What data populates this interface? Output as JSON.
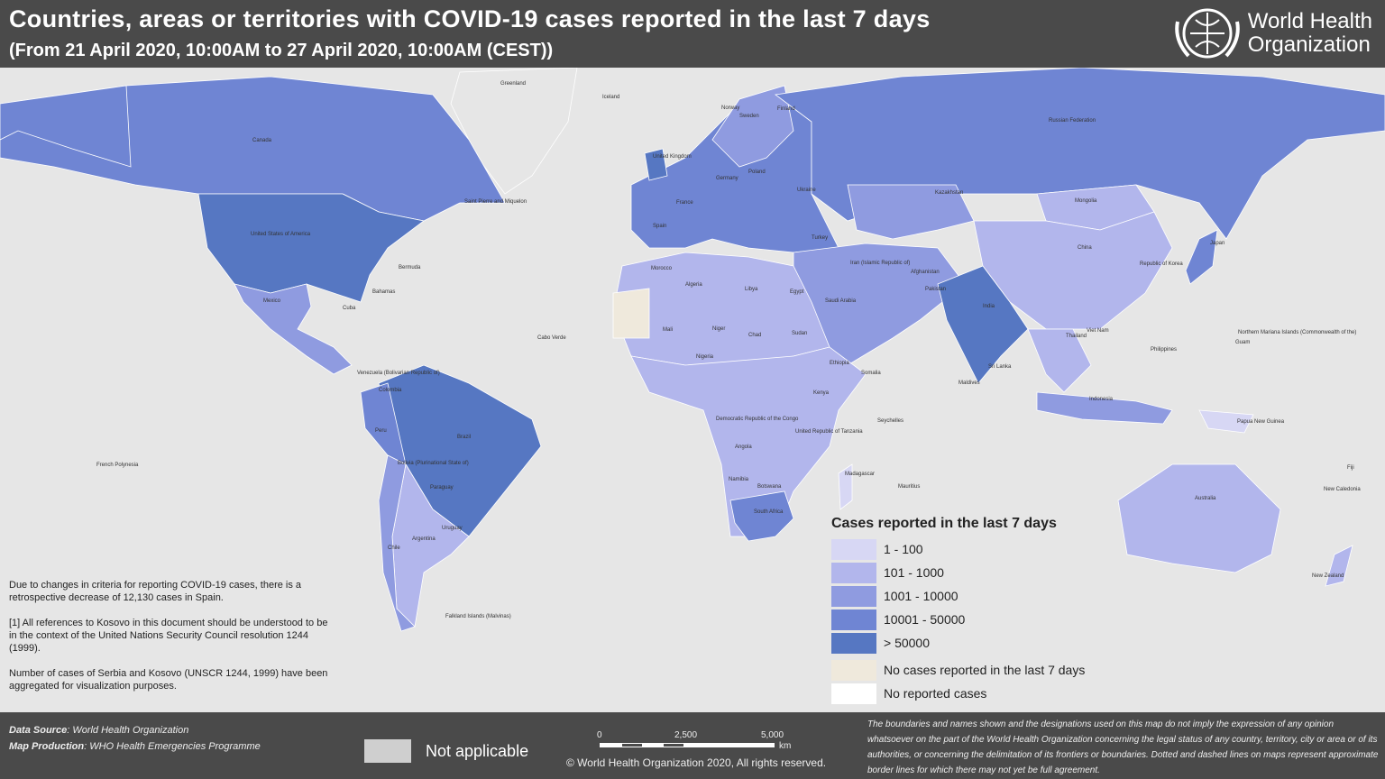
{
  "header": {
    "title": "Countries, areas or territories with COVID-19 cases reported in the last 7 days",
    "subtitle": "(From 21 April 2020, 10:00AM  to 27 April 2020, 10:00AM (CEST))",
    "logo_text_line1": "World Health",
    "logo_text_line2": "Organization",
    "logo_icon": "who-emblem-icon"
  },
  "map": {
    "background_color": "#e6e6e6",
    "labels": [
      "Greenland",
      "Iceland",
      "Canada",
      "United States of America",
      "Mexico",
      "Cuba",
      "Bahamas",
      "Bermuda",
      "Saint Pierre and Miquelon",
      "Colombia",
      "Venezuela (Bolivarian Republic of)",
      "Brazil",
      "Peru",
      "Bolivia (Plurinational State of)",
      "Paraguay",
      "Argentina",
      "Chile",
      "Uruguay",
      "Falkland Islands (Malvinas)",
      "French Polynesia",
      "Russian Federation",
      "Kazakhstan",
      "Mongolia",
      "China",
      "Japan",
      "Republic of Korea",
      "India",
      "Pakistan",
      "Iran (Islamic Republic of)",
      "Saudi Arabia",
      "Egypt",
      "Libya",
      "Algeria",
      "Morocco",
      "Mali",
      "Niger",
      "Chad",
      "Sudan",
      "Ethiopia",
      "Nigeria",
      "Democratic Republic of the Congo",
      "United Republic of Tanzania",
      "Angola",
      "Namibia",
      "Botswana",
      "South Africa",
      "Madagascar",
      "Australia",
      "New Zealand",
      "Papua New Guinea",
      "Indonesia",
      "Philippines",
      "Thailand",
      "Viet Nam",
      "Spain",
      "France",
      "Germany",
      "Poland",
      "Ukraine",
      "Norway",
      "Sweden",
      "Finland",
      "United Kingdom",
      "Turkey",
      "Afghanistan",
      "Somalia",
      "Kenya",
      "Cabo Verde",
      "Fiji",
      "New Caledonia",
      "Northern Mariana Islands (Commonwealth of the)",
      "Guam",
      "Sri Lanka",
      "Maldives",
      "Seychelles",
      "Mauritius"
    ]
  },
  "legend": {
    "title": "Cases reported in the last 7 days",
    "items": [
      {
        "label": "1 - 100",
        "color": "#d7d7f4"
      },
      {
        "label": "101 - 1000",
        "color": "#b2b6ec"
      },
      {
        "label": "1001 - 10000",
        "color": "#8f9be0"
      },
      {
        "label": "10001 - 50000",
        "color": "#6f85d3"
      },
      {
        "label": "> 50000",
        "color": "#5677c2"
      },
      {
        "label": "No cases reported in the last 7 days",
        "color": "#efe9dc"
      },
      {
        "label": "No reported cases",
        "color": "#ffffff"
      }
    ]
  },
  "notes": [
    "Due to changes in criteria for reporting COVID-19 cases, there is a retrospective decrease of 12,130 cases in Spain.",
    "[1] All references to Kosovo in this document should be understood to be in the context of the United Nations Security Council resolution 1244 (1999).",
    "Number of cases of Serbia and Kosovo (UNSCR 1244, 1999)  have been aggregated for visualization purposes."
  ],
  "footer": {
    "data_source_label": "Data Source",
    "data_source": "World Health Organization",
    "map_production_label": "Map Production",
    "map_production": "WHO Health Emergencies Programme",
    "not_applicable": "Not applicable",
    "not_applicable_color": "#cfcfcf",
    "scale": {
      "ticks": [
        "0",
        "2,500",
        "5,000"
      ],
      "unit": "km"
    },
    "copyright": "© World Health Organization  2020,  All rights reserved.",
    "disclaimer": "The boundaries and names shown and the designations used on this map do not imply the expression of any opinion whatsoever on the part of the World Health Organization concerning the legal status of any country, territory, city or area or of its authorities, or concerning the delimitation of its frontiers or boundaries. Dotted and dashed lines on maps represent approximate border lines for which there may not yet be full agreement."
  }
}
